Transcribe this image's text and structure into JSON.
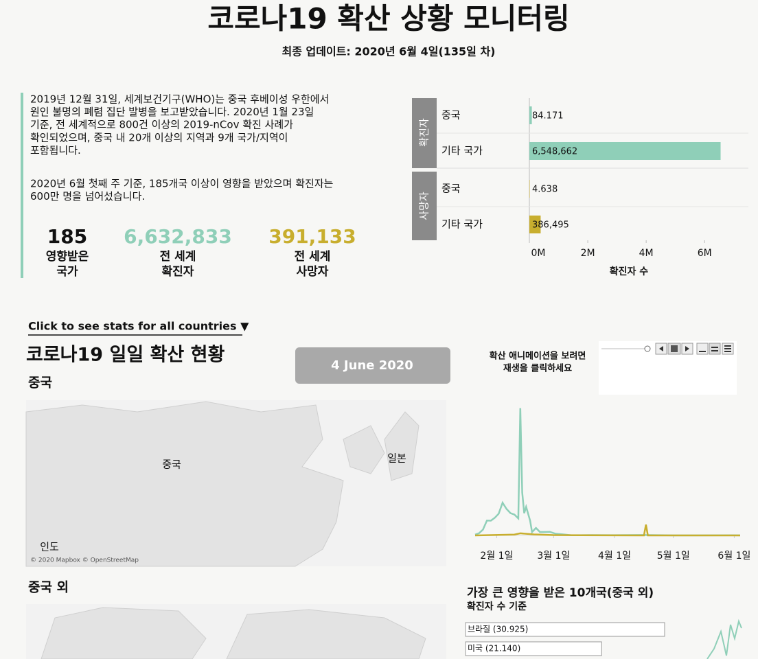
{
  "header": {
    "title": "코로나19 확산 상황 모니터링",
    "subtitle": "최종 업데이트: 2020년 6월 4일(135일 차)"
  },
  "intro": {
    "paragraphs": [
      [
        "2019년 12월 31일, 세계보건기구(WHO)는 중국 후베이성 우한에서",
        "원인 불명의 폐렴 집단 발병을 보고받았습니다. 2020년 1월 23일",
        "기준, 전 세계적으로 800건 이상의 2019-nCov 확진 사례가",
        "확인되었으며, 중국 내 20개 이상의 지역과 9개 국가/지역이",
        "포함됩니다."
      ],
      [
        "2020년 6월 첫째 주 기준, 185개국 이상이 영향을 받았으며 확진자는",
        "600만 명을 넘어섰습니다."
      ]
    ]
  },
  "kpis": [
    {
      "value": "185",
      "label": [
        "영향받은",
        "국가"
      ],
      "color": "#111111"
    },
    {
      "value": "6,632,833",
      "label": [
        "전 세계",
        "확진자"
      ],
      "color": "#8fcfb8"
    },
    {
      "value": "391,133",
      "label": [
        "전 세계",
        "사망자"
      ],
      "color": "#c8ae2e"
    }
  ],
  "links": {
    "all_countries": "Click to see stats for all countries ▼"
  },
  "daily": {
    "title": "코로나19 일일 확산 현황",
    "date_button": "4 June 2020",
    "animation_hint": [
      "확산 애니메이션을 보려면",
      "재생을 클릭하세요"
    ],
    "china_map": {
      "title": "중국",
      "labels": [
        "중국",
        "일본",
        "인도"
      ],
      "attribution": "© 2020 Mapbox © OpenStreetMap"
    },
    "world_map": {
      "title": "중국 외"
    }
  },
  "chart_data": [
    {
      "type": "bar",
      "orientation": "horizontal",
      "categories": [
        "중국",
        "기타 국가"
      ],
      "series": [
        {
          "name": "확진자",
          "color": "#8fcfb8",
          "values": [
            84171,
            6548662
          ],
          "value_labels": [
            "84.171",
            "6,548,662"
          ]
        },
        {
          "name": "사망자",
          "color": "#c8ae2e",
          "values": [
            4638,
            386495
          ],
          "value_labels": [
            "4.638",
            "386,495"
          ]
        }
      ],
      "xlabel": "확진자 수",
      "xlim": [
        0,
        7500000
      ],
      "xticks": [
        {
          "value": 0,
          "label": "0M"
        },
        {
          "value": 2000000,
          "label": "2M"
        },
        {
          "value": 4000000,
          "label": "4M"
        },
        {
          "value": 6000000,
          "label": "6M"
        }
      ]
    },
    {
      "type": "line",
      "xticks": [
        "2월 1일",
        "3월 1일",
        "4월 1일",
        "5월 1일",
        "6월 1일"
      ],
      "ylim": [
        0,
        15500
      ],
      "series": [
        {
          "color": "#8fcfb8",
          "x": [
            "1월 21일",
            "1월 23일",
            "1월 25일",
            "1월 27일",
            "1월 29일",
            "1월 31일",
            "2월 2일",
            "2월 4일",
            "2월 6일",
            "2월 8일",
            "2월 10일",
            "2월 12일",
            "2월 13일",
            "2월 14일",
            "2월 15일",
            "2월 16일",
            "2월 18일",
            "2월 19일",
            "2월 21일",
            "2월 23일",
            "2월 25일",
            "2월 28일",
            "3월 2일",
            "3월 5일",
            "3월 10일",
            "3월 20일",
            "4월 1일",
            "4월 15일",
            "5월 1일",
            "6월 1일",
            "6월 4일"
          ],
          "values": [
            100,
            260,
            690,
            1770,
            1750,
            2100,
            2590,
            3890,
            3150,
            2650,
            2480,
            2020,
            15130,
            5090,
            2640,
            3400,
            1750,
            400,
            890,
            410,
            410,
            430,
            200,
            140,
            20,
            40,
            35,
            50,
            10,
            15,
            5
          ]
        },
        {
          "color": "#c8ae2e",
          "x": [
            "1월 21일",
            "1월 31일",
            "2월 10일",
            "2월 13일",
            "2월 20일",
            "3월 1일",
            "3월 15일",
            "4월 16일",
            "4월 17일",
            "4월 18일",
            "6월 4일"
          ],
          "values": [
            0,
            45,
            110,
            250,
            120,
            40,
            15,
            0,
            1290,
            0,
            0
          ]
        }
      ]
    },
    {
      "type": "bar",
      "orientation": "horizontal",
      "title": "가장 큰 영향을 받은 10개국(중국 외)",
      "subtitle": "확진자 수 기준",
      "categories": [
        "브라질 (30.925)",
        "미국 (21.140)"
      ],
      "values": [
        30925,
        21140
      ]
    }
  ]
}
